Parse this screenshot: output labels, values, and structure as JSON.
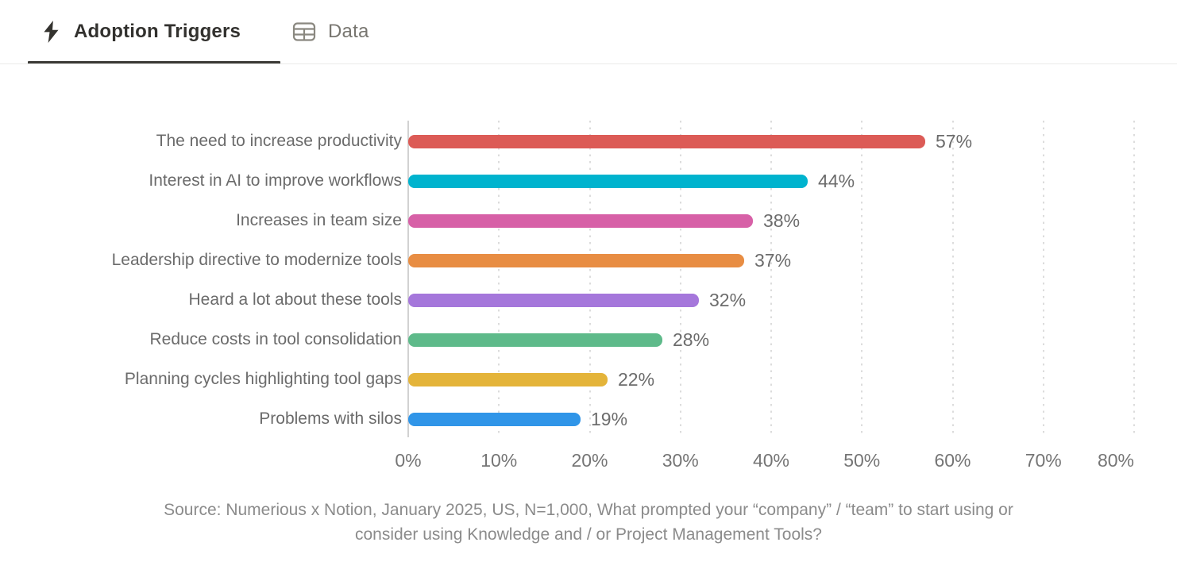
{
  "tabs": [
    {
      "label": "Adoption Triggers",
      "icon": "lightning-bolt",
      "active": true
    },
    {
      "label": "Data",
      "icon": "table",
      "active": false
    }
  ],
  "chart_data": {
    "type": "bar",
    "orientation": "horizontal",
    "title": "Adoption Triggers",
    "categories": [
      "The need to increase productivity",
      "Interest in AI to improve workflows",
      "Increases in team size",
      "Leadership directive to modernize tools",
      "Heard a lot about these tools",
      "Reduce costs in tool consolidation",
      "Planning cycles highlighting tool gaps",
      "Problems with silos"
    ],
    "values": [
      57,
      44,
      38,
      37,
      32,
      28,
      22,
      19
    ],
    "value_labels": [
      "57%",
      "44%",
      "38%",
      "37%",
      "32%",
      "28%",
      "22%",
      "19%"
    ],
    "bar_colors": [
      "#dc5b56",
      "#00b3ce",
      "#d760a7",
      "#e88d43",
      "#a577db",
      "#5eba8a",
      "#e4b43a",
      "#3095e8"
    ],
    "x_ticks": [
      "0%",
      "10%",
      "20%",
      "30%",
      "40%",
      "50%",
      "60%",
      "70%",
      "80%"
    ],
    "xlim": [
      0,
      80
    ],
    "tick_step": 10,
    "grid": "vertical-dotted",
    "legend": "none"
  },
  "source": {
    "lines": [
      "Source: Numerious x Notion, January 2025, US, N=1,000, What prompted your “company” / “team” to start using or",
      "consider using Knowledge and / or Project Management Tools?"
    ]
  },
  "colors": {
    "active_tab_text": "#32312e",
    "inactive_tab_text": "#787670",
    "tab_underline": "#3b3a36",
    "axis_line": "#d2d2d2",
    "gridline": "#dcdcdc",
    "category_text": "#6b6b6b",
    "value_text": "#6c6c6c",
    "tick_text": "#757575",
    "source_text": "#8b8b8b"
  }
}
